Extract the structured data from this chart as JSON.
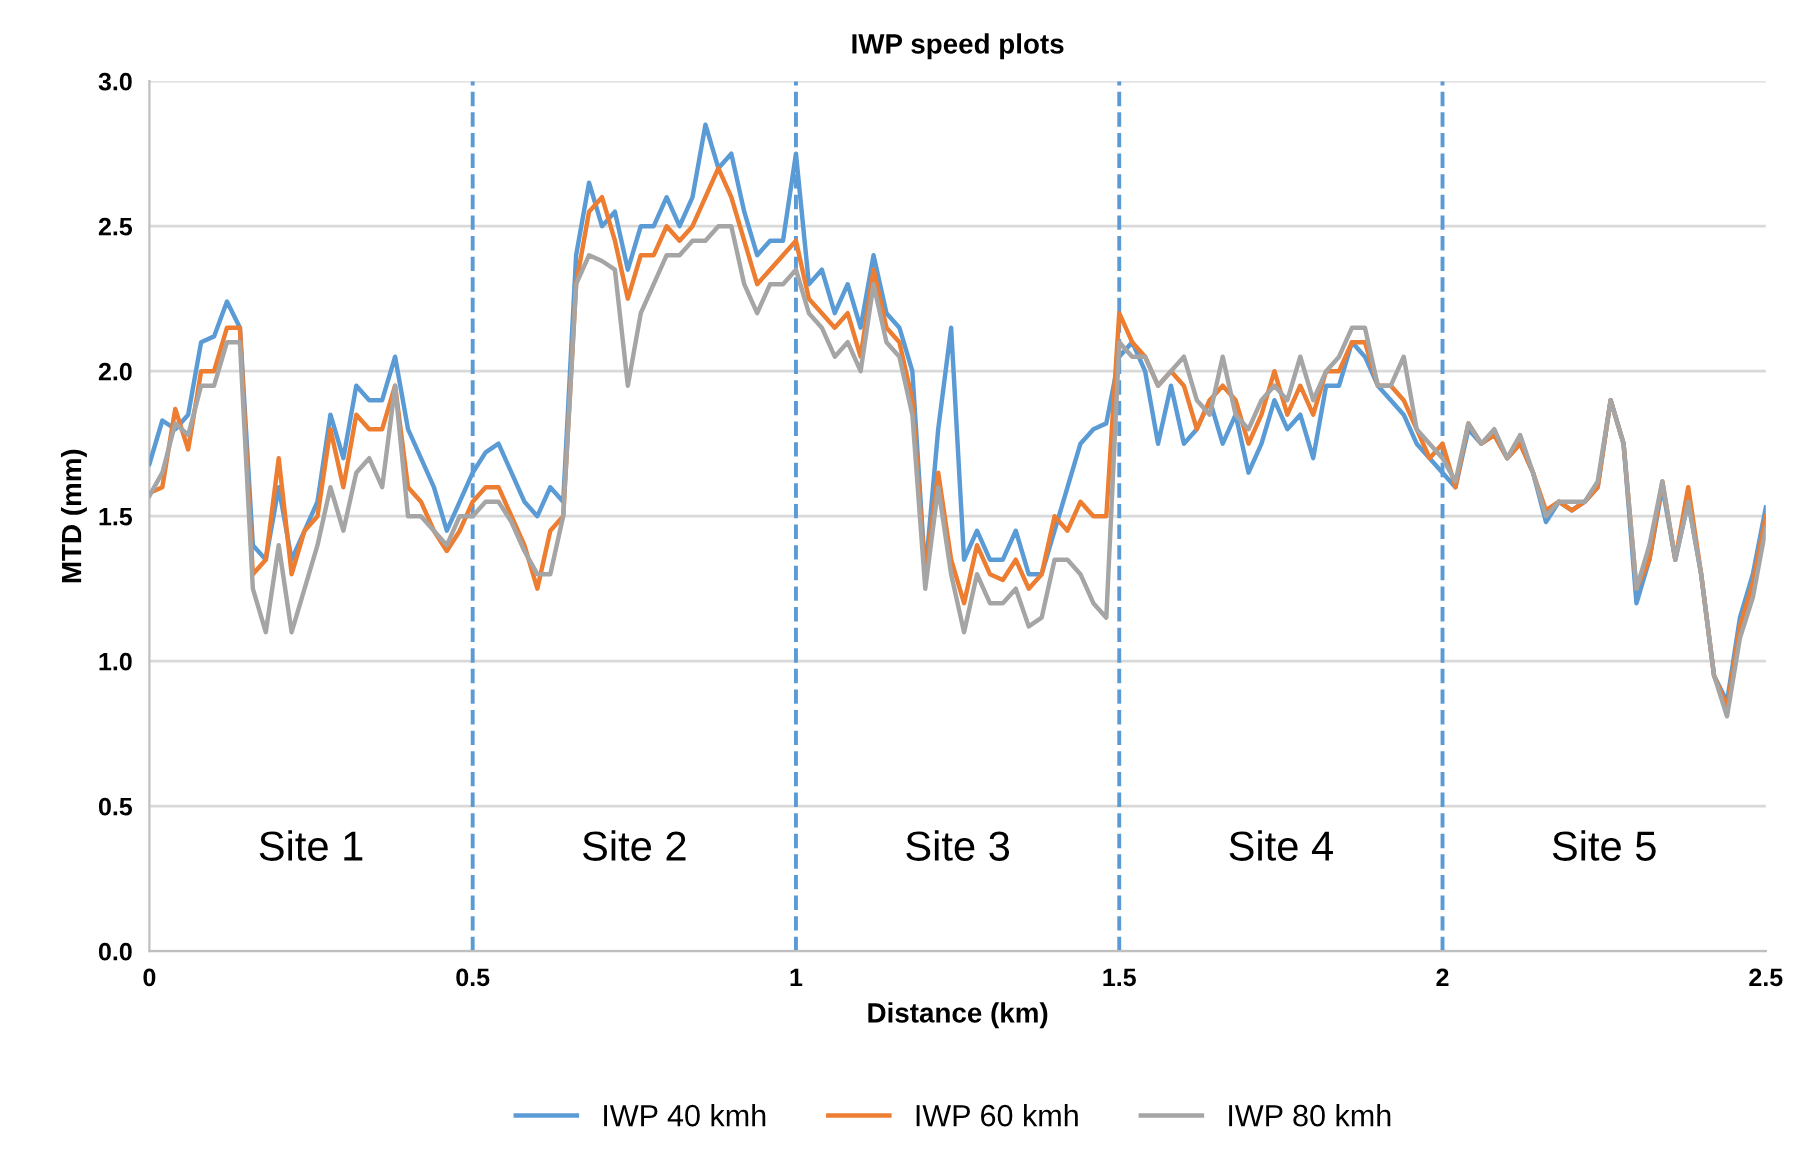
{
  "chart_data": {
    "type": "line",
    "title": "IWP speed plots",
    "xlabel": "Distance (km)",
    "ylabel": "MTD (mm)",
    "x": [
      0,
      0.02,
      0.04,
      0.06,
      0.08,
      0.1,
      0.12,
      0.14,
      0.16,
      0.18,
      0.2,
      0.22,
      0.24,
      0.26,
      0.28,
      0.3,
      0.32,
      0.34,
      0.36,
      0.38,
      0.4,
      0.42,
      0.44,
      0.46,
      0.48,
      0.5,
      0.52,
      0.54,
      0.56,
      0.58,
      0.6,
      0.62,
      0.64,
      0.66,
      0.68,
      0.7,
      0.72,
      0.74,
      0.76,
      0.78,
      0.8,
      0.82,
      0.84,
      0.86,
      0.88,
      0.9,
      0.92,
      0.94,
      0.96,
      0.98,
      1.0,
      1.02,
      1.04,
      1.06,
      1.08,
      1.1,
      1.12,
      1.14,
      1.16,
      1.18,
      1.2,
      1.22,
      1.24,
      1.26,
      1.28,
      1.3,
      1.32,
      1.34,
      1.36,
      1.38,
      1.4,
      1.42,
      1.44,
      1.46,
      1.48,
      1.5,
      1.52,
      1.54,
      1.56,
      1.58,
      1.6,
      1.62,
      1.64,
      1.66,
      1.68,
      1.7,
      1.72,
      1.74,
      1.76,
      1.78,
      1.8,
      1.82,
      1.84,
      1.86,
      1.88,
      1.9,
      1.92,
      1.94,
      1.96,
      1.98,
      2.0,
      2.02,
      2.04,
      2.06,
      2.08,
      2.1,
      2.12,
      2.14,
      2.16,
      2.18,
      2.2,
      2.22,
      2.24,
      2.26,
      2.28,
      2.3,
      2.32,
      2.34,
      2.36,
      2.38,
      2.4,
      2.42,
      2.44,
      2.46,
      2.48,
      2.5
    ],
    "series": [
      {
        "name": "IWP 40 kmh",
        "color": "#5b9bd5",
        "values": [
          1.68,
          1.83,
          1.8,
          1.85,
          2.1,
          2.12,
          2.24,
          2.15,
          1.4,
          1.35,
          1.6,
          1.35,
          1.45,
          1.55,
          1.85,
          1.7,
          1.95,
          1.9,
          1.9,
          2.05,
          1.8,
          1.7,
          1.6,
          1.45,
          1.55,
          1.65,
          1.72,
          1.75,
          1.65,
          1.55,
          1.5,
          1.6,
          1.55,
          2.4,
          2.65,
          2.5,
          2.55,
          2.35,
          2.5,
          2.5,
          2.6,
          2.5,
          2.6,
          2.85,
          2.7,
          2.75,
          2.55,
          2.4,
          2.45,
          2.45,
          2.75,
          2.3,
          2.35,
          2.2,
          2.3,
          2.15,
          2.4,
          2.2,
          2.15,
          2.0,
          1.3,
          1.8,
          2.15,
          1.35,
          1.45,
          1.35,
          1.35,
          1.45,
          1.3,
          1.3,
          1.45,
          1.6,
          1.75,
          1.8,
          1.82,
          2.05,
          2.1,
          2.0,
          1.75,
          1.95,
          1.75,
          1.8,
          1.9,
          1.75,
          1.85,
          1.65,
          1.75,
          1.9,
          1.8,
          1.85,
          1.7,
          1.95,
          1.95,
          2.1,
          2.05,
          1.95,
          1.9,
          1.85,
          1.75,
          1.7,
          1.65,
          1.6,
          1.8,
          1.75,
          1.78,
          1.7,
          1.75,
          1.65,
          1.48,
          1.55,
          1.52,
          1.55,
          1.6,
          1.9,
          1.75,
          1.2,
          1.35,
          1.6,
          1.35,
          1.55,
          1.3,
          0.95,
          0.86,
          1.15,
          1.3,
          1.53
        ]
      },
      {
        "name": "IWP 60 kmh",
        "color": "#ed7d31",
        "values": [
          1.58,
          1.6,
          1.87,
          1.73,
          2.0,
          2.0,
          2.15,
          2.15,
          1.3,
          1.35,
          1.7,
          1.3,
          1.45,
          1.5,
          1.8,
          1.6,
          1.85,
          1.8,
          1.8,
          1.95,
          1.6,
          1.55,
          1.45,
          1.38,
          1.45,
          1.55,
          1.6,
          1.6,
          1.5,
          1.4,
          1.25,
          1.45,
          1.5,
          2.3,
          2.55,
          2.6,
          2.45,
          2.25,
          2.4,
          2.4,
          2.5,
          2.45,
          2.5,
          2.6,
          2.7,
          2.6,
          2.45,
          2.3,
          2.35,
          2.4,
          2.45,
          2.25,
          2.2,
          2.15,
          2.2,
          2.05,
          2.35,
          2.15,
          2.1,
          1.9,
          1.3,
          1.65,
          1.35,
          1.2,
          1.4,
          1.3,
          1.28,
          1.35,
          1.25,
          1.3,
          1.5,
          1.45,
          1.55,
          1.5,
          1.5,
          2.2,
          2.1,
          2.05,
          1.95,
          2.0,
          1.95,
          1.8,
          1.9,
          1.95,
          1.9,
          1.75,
          1.85,
          2.0,
          1.85,
          1.95,
          1.85,
          2.0,
          2.0,
          2.1,
          2.1,
          1.95,
          1.95,
          1.9,
          1.8,
          1.7,
          1.75,
          1.6,
          1.82,
          1.75,
          1.78,
          1.7,
          1.75,
          1.65,
          1.52,
          1.55,
          1.52,
          1.55,
          1.6,
          1.9,
          1.75,
          1.25,
          1.35,
          1.62,
          1.35,
          1.6,
          1.3,
          0.95,
          0.84,
          1.12,
          1.27,
          1.5
        ]
      },
      {
        "name": "IWP 80 kmh",
        "color": "#a5a5a5",
        "values": [
          1.57,
          1.65,
          1.82,
          1.78,
          1.95,
          1.95,
          2.1,
          2.1,
          1.25,
          1.1,
          1.4,
          1.1,
          1.25,
          1.4,
          1.6,
          1.45,
          1.65,
          1.7,
          1.6,
          1.95,
          1.5,
          1.5,
          1.45,
          1.4,
          1.5,
          1.5,
          1.55,
          1.55,
          1.48,
          1.38,
          1.3,
          1.3,
          1.5,
          2.3,
          2.4,
          2.38,
          2.35,
          1.95,
          2.2,
          2.3,
          2.4,
          2.4,
          2.45,
          2.45,
          2.5,
          2.5,
          2.3,
          2.2,
          2.3,
          2.3,
          2.35,
          2.2,
          2.15,
          2.05,
          2.1,
          2.0,
          2.3,
          2.1,
          2.05,
          1.85,
          1.25,
          1.6,
          1.3,
          1.1,
          1.3,
          1.2,
          1.2,
          1.25,
          1.12,
          1.15,
          1.35,
          1.35,
          1.3,
          1.2,
          1.15,
          2.1,
          2.05,
          2.05,
          1.95,
          2.0,
          2.05,
          1.9,
          1.85,
          2.05,
          1.85,
          1.8,
          1.9,
          1.95,
          1.9,
          2.05,
          1.9,
          2.0,
          2.05,
          2.15,
          2.15,
          1.95,
          1.95,
          2.05,
          1.8,
          1.75,
          1.7,
          1.62,
          1.82,
          1.75,
          1.8,
          1.7,
          1.78,
          1.65,
          1.5,
          1.55,
          1.55,
          1.55,
          1.62,
          1.9,
          1.75,
          1.25,
          1.4,
          1.62,
          1.35,
          1.55,
          1.3,
          0.95,
          0.81,
          1.08,
          1.22,
          1.46
        ]
      }
    ],
    "xlim": [
      0,
      2.5
    ],
    "xticks": [
      0,
      0.5,
      1,
      1.5,
      2,
      2.5
    ],
    "ylim": [
      0,
      3.0
    ],
    "yticks": [
      {
        "value": 0,
        "label": "0.0"
      },
      {
        "value": 0.5,
        "label": "0.5"
      },
      {
        "value": 1,
        "label": "1.0"
      },
      {
        "value": 1.5,
        "label": "1.5"
      },
      {
        "value": 2,
        "label": "2.0"
      },
      {
        "value": 2.5,
        "label": "2.5"
      },
      {
        "value": 3,
        "label": "3.0"
      }
    ],
    "ref_lines": [
      {
        "axis": "x",
        "value": 0.5,
        "color": "#5b9bd5",
        "line_style": "dashed"
      },
      {
        "axis": "x",
        "value": 1,
        "color": "#5b9bd5",
        "line_style": "dashed"
      },
      {
        "axis": "x",
        "value": 1.5,
        "color": "#5b9bd5",
        "line_style": "dashed"
      },
      {
        "axis": "x",
        "value": 2,
        "color": "#5b9bd5",
        "line_style": "dashed"
      }
    ],
    "annotations": [
      "Site 1",
      "Site 2",
      "Site 3",
      "Site 4",
      "Site 5"
    ],
    "grid": "y",
    "legend": "bottom",
    "marker": "none",
    "line_style": "solid"
  }
}
